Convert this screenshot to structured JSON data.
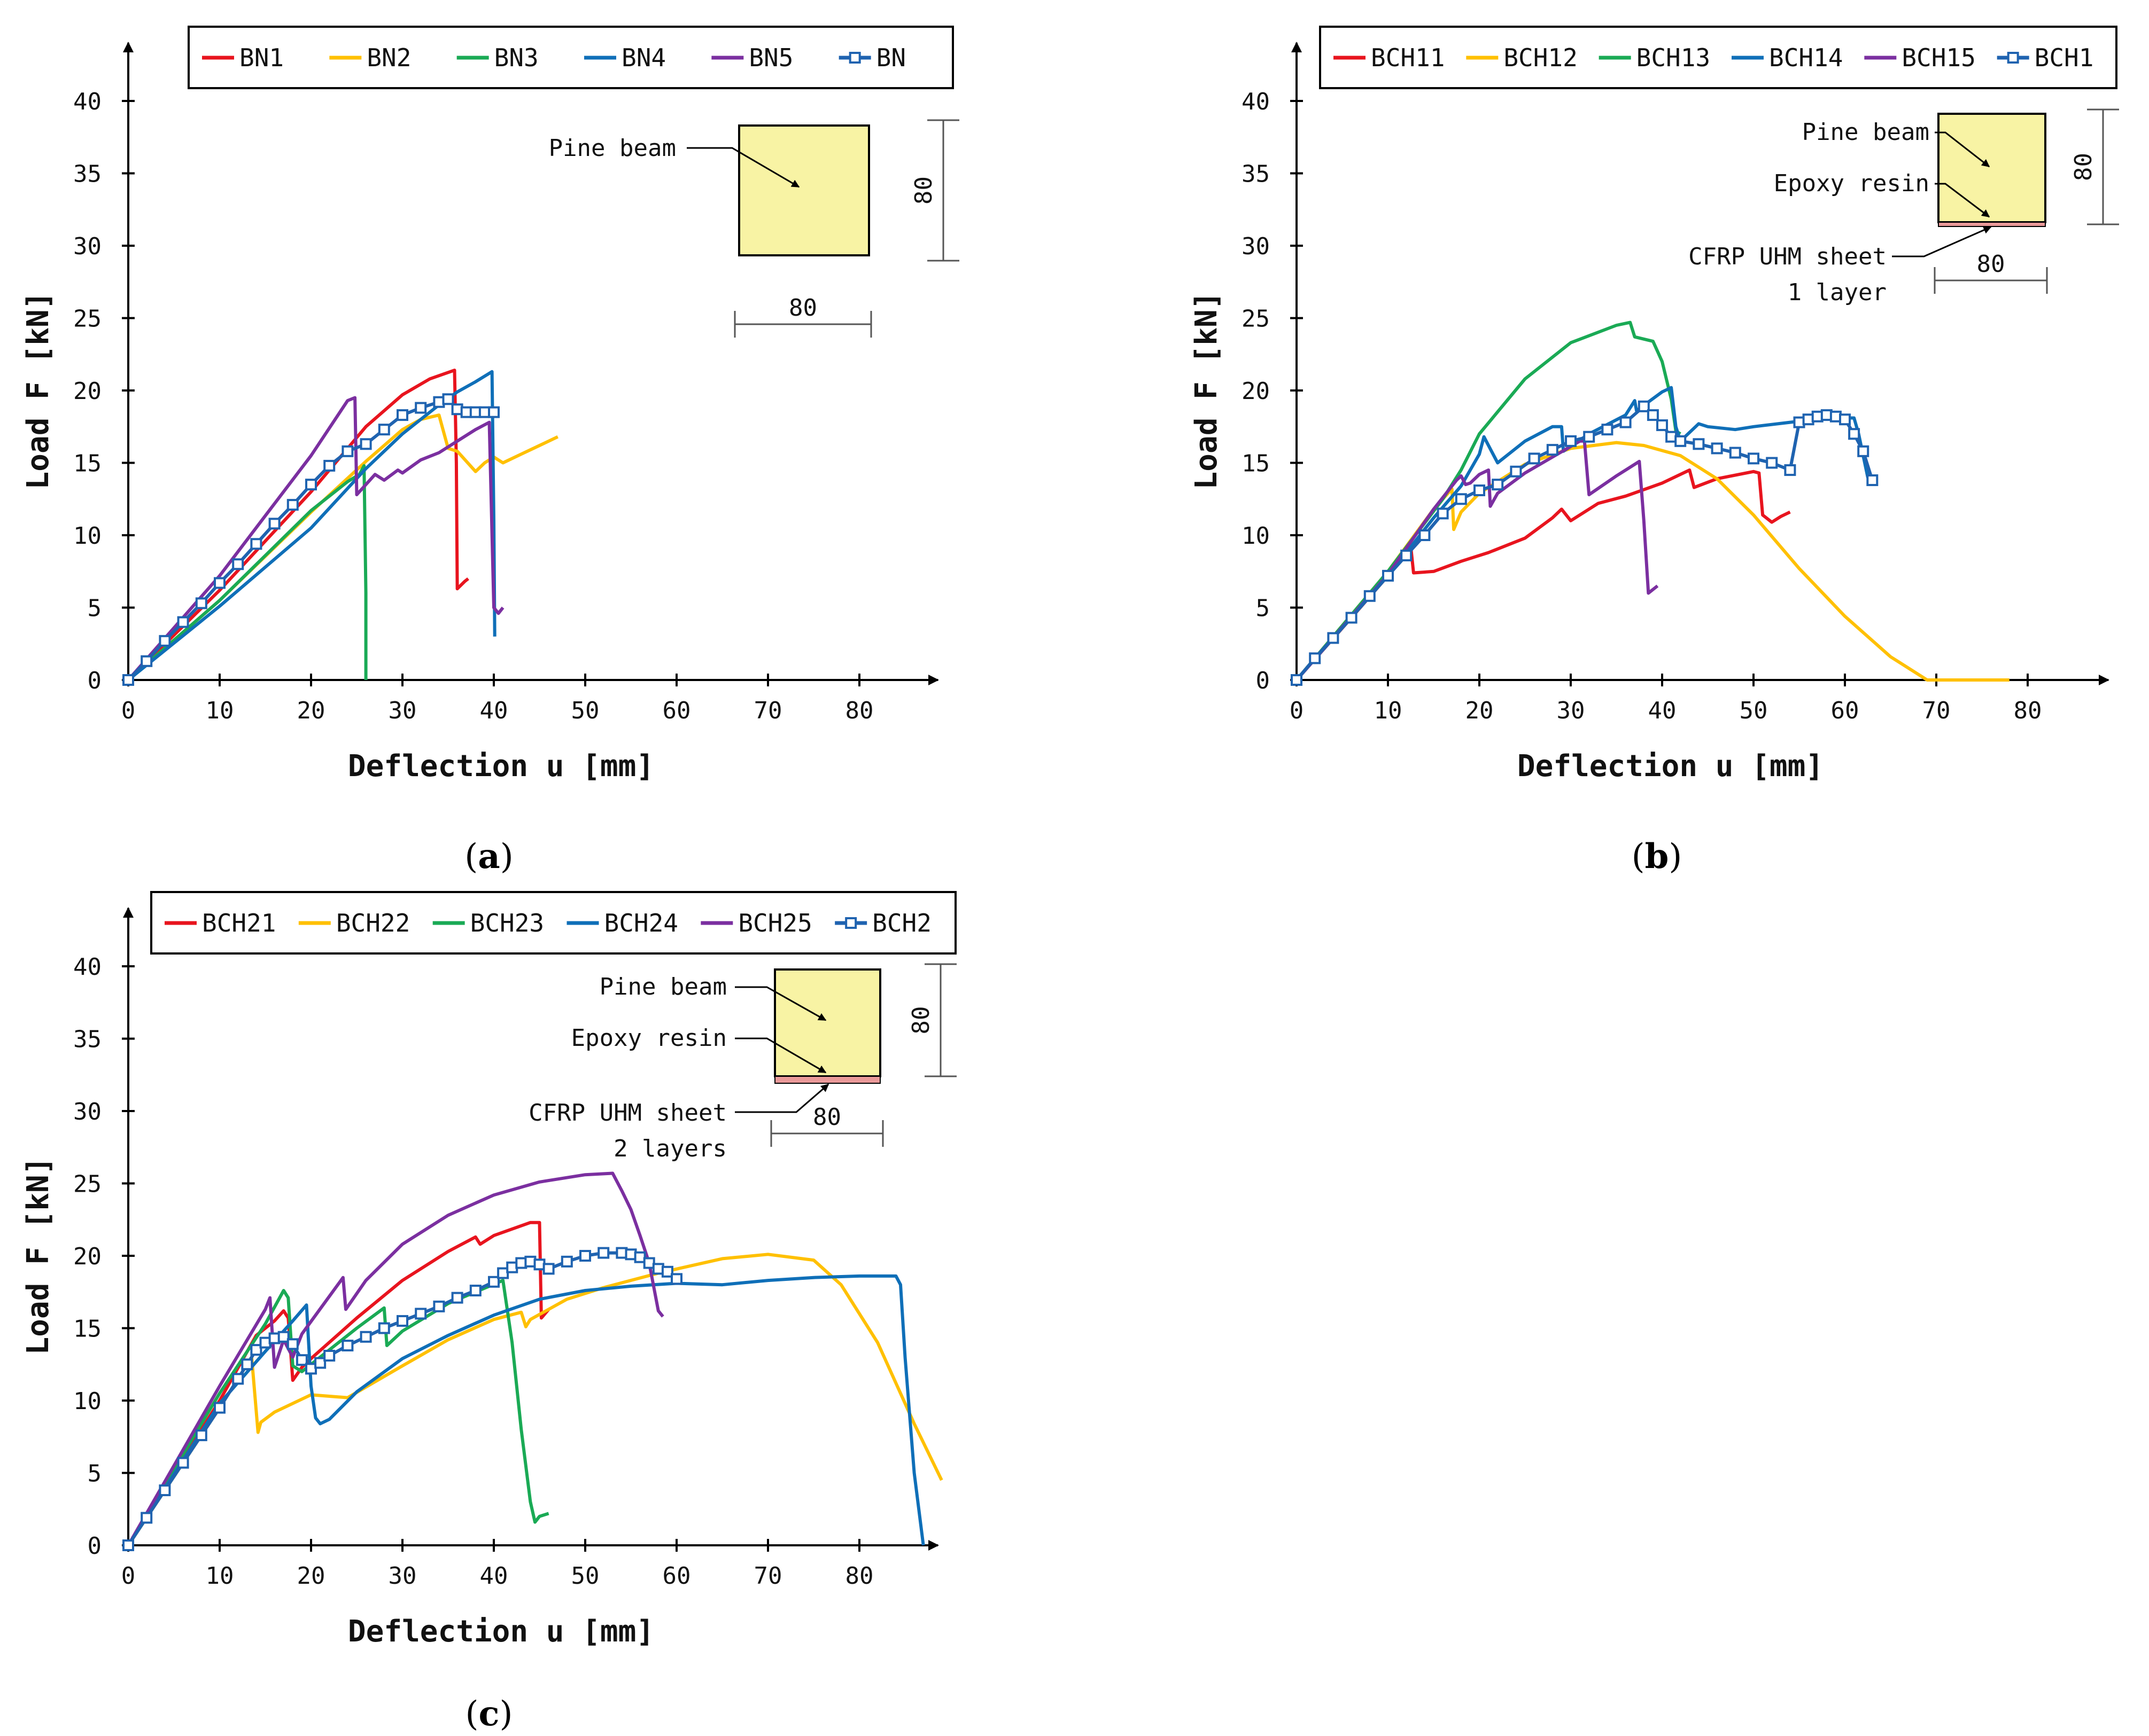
{
  "colors": {
    "red": "#e8141e",
    "yellow": "#ffc000",
    "green": "#1aaa55",
    "blue": "#0f6fb8",
    "purple": "#7b2fa0",
    "mean": "#1f63b0",
    "beam": "#f8f3a4",
    "cfrp": "#ea9999"
  },
  "chart_data": [
    {
      "type": "line",
      "panel": "a",
      "caption": {
        "open": "(",
        "letter": "a",
        "close": ")"
      },
      "xlabel": "Deflection u [mm]",
      "ylabel": "Load F [kN]",
      "xlim": [
        0,
        88
      ],
      "ylim": [
        0,
        43
      ],
      "xticks": [
        "0",
        "10",
        "20",
        "30",
        "40",
        "50",
        "60",
        "70",
        "80"
      ],
      "yticks": [
        "0",
        "5",
        "10",
        "15",
        "20",
        "25",
        "30",
        "35",
        "40"
      ],
      "inset": {
        "labels": [
          "Pine beam"
        ],
        "width": "80",
        "height": "80"
      },
      "series": [
        {
          "name": "BN1",
          "color": "red",
          "x": [
            0,
            10,
            20,
            26,
            30,
            33,
            35.7,
            35.9,
            36,
            36.8,
            37.2
          ],
          "y": [
            0,
            6.2,
            13,
            17.5,
            19.7,
            20.8,
            21.4,
            15,
            6.3,
            6.8,
            7
          ]
        },
        {
          "name": "BN2",
          "color": "yellow",
          "x": [
            0,
            10,
            20,
            26,
            30,
            32,
            34,
            35,
            36,
            37,
            38,
            39,
            40,
            41,
            43,
            45,
            47
          ],
          "y": [
            0,
            5.5,
            11.6,
            15.1,
            17.3,
            18,
            18.3,
            16,
            15.8,
            15.1,
            14.4,
            15,
            15.4,
            15,
            15.6,
            16.2,
            16.8
          ],
          "markers": false
        },
        {
          "name": "BN3",
          "color": "green",
          "x": [
            0,
            10,
            20,
            24,
            25.3,
            25.8,
            26,
            26
          ],
          "y": [
            0,
            5.5,
            11.7,
            13.7,
            14.2,
            14.8,
            6,
            0
          ]
        },
        {
          "name": "BN4",
          "color": "blue",
          "x": [
            0,
            10,
            20,
            26,
            30,
            34,
            36,
            38,
            39.8,
            40,
            40.1
          ],
          "y": [
            0,
            5.1,
            10.5,
            14.6,
            17,
            19,
            19.9,
            20.6,
            21.3,
            11,
            3
          ]
        },
        {
          "name": "BN5",
          "color": "purple",
          "x": [
            0,
            10,
            20,
            24,
            24.8,
            25,
            27,
            28,
            29.5,
            30,
            32,
            34,
            36,
            38,
            39.5,
            40,
            40.5,
            41
          ],
          "y": [
            0,
            7.2,
            15.5,
            19.3,
            19.5,
            12.8,
            14.2,
            13.8,
            14.5,
            14.3,
            15.2,
            15.7,
            16.5,
            17.3,
            17.8,
            5,
            4.6,
            5
          ]
        },
        {
          "name": "BN",
          "color": "mean",
          "markers": true,
          "x": [
            0,
            2,
            4,
            6,
            8,
            10,
            12,
            14,
            16,
            18,
            20,
            22,
            24,
            26,
            28,
            30,
            32,
            34,
            35,
            36,
            37,
            38,
            39,
            40
          ],
          "y": [
            0,
            1.3,
            2.7,
            4,
            5.3,
            6.7,
            8,
            9.4,
            10.8,
            12.1,
            13.5,
            14.8,
            15.8,
            16.3,
            17.3,
            18.3,
            18.8,
            19.2,
            19.4,
            18.7,
            18.5,
            18.5,
            18.5,
            18.5
          ]
        }
      ]
    },
    {
      "type": "line",
      "panel": "b",
      "caption": {
        "open": "(",
        "letter": "b",
        "close": ")"
      },
      "xlabel": "Deflection u [mm]",
      "ylabel": "Load F [kN]",
      "xlim": [
        0,
        88
      ],
      "ylim": [
        0,
        43
      ],
      "xticks": [
        "0",
        "10",
        "20",
        "30",
        "40",
        "50",
        "60",
        "70",
        "80"
      ],
      "yticks": [
        "0",
        "5",
        "10",
        "15",
        "20",
        "25",
        "30",
        "35",
        "40"
      ],
      "inset": {
        "labels": [
          "Pine beam",
          "Epoxy resin",
          "CFRP UHM sheet",
          "1 layer"
        ],
        "width": "80",
        "height": "80"
      },
      "series": [
        {
          "name": "BCH11",
          "color": "red",
          "x": [
            0,
            6,
            10,
            12,
            12.5,
            12.8,
            15,
            18,
            21,
            25,
            28,
            29,
            30,
            33,
            36,
            40,
            43,
            43.5,
            46,
            50,
            50.6,
            51,
            52,
            53,
            54
          ],
          "y": [
            0,
            4.3,
            7.2,
            9,
            9.2,
            7.4,
            7.5,
            8.2,
            8.8,
            9.8,
            11.2,
            11.8,
            11,
            12.2,
            12.7,
            13.6,
            14.5,
            13.3,
            13.9,
            14.4,
            14.3,
            11.4,
            10.9,
            11.3,
            11.6
          ]
        },
        {
          "name": "BCH12",
          "color": "yellow",
          "x": [
            0,
            10,
            15,
            17,
            17.2,
            18,
            20,
            25,
            30,
            35,
            38,
            42,
            46,
            50,
            55,
            60,
            65,
            69,
            70,
            76.5,
            78
          ],
          "y": [
            0,
            7.5,
            11.8,
            13.2,
            10.4,
            11.6,
            12.9,
            14.9,
            16,
            16.4,
            16.2,
            15.5,
            13.9,
            11.4,
            7.7,
            4.4,
            1.6,
            0,
            0,
            0,
            0
          ]
        },
        {
          "name": "BCH13",
          "color": "green",
          "x": [
            0,
            10,
            16,
            18,
            20,
            25,
            30,
            35,
            36.5,
            37,
            39,
            40,
            41,
            41.5,
            42
          ],
          "y": [
            0,
            7.5,
            12.5,
            14.5,
            17,
            20.8,
            23.3,
            24.5,
            24.7,
            23.7,
            23.4,
            22,
            19.4,
            17.2,
            17
          ]
        },
        {
          "name": "BCH14",
          "color": "blue",
          "x": [
            0,
            10,
            15,
            18,
            20,
            20.5,
            22,
            25,
            28,
            29,
            29.2,
            32,
            36,
            37,
            37.2,
            40,
            41,
            41.5,
            42,
            44,
            45,
            48,
            50,
            54,
            58,
            61,
            61.5,
            62,
            62.5,
            63
          ],
          "y": [
            0,
            7.2,
            11.2,
            13.4,
            15.6,
            16.8,
            15,
            16.5,
            17.5,
            17.5,
            15.8,
            17,
            18.3,
            19.3,
            18.6,
            19.9,
            20.2,
            17.5,
            16.5,
            17.7,
            17.5,
            17.3,
            17.5,
            17.8,
            18.1,
            18.1,
            17,
            15.5,
            14,
            13.9
          ]
        },
        {
          "name": "BCH15",
          "color": "purple",
          "x": [
            0,
            10,
            15,
            17.5,
            18,
            18.5,
            19,
            20,
            21,
            21.2,
            22,
            25,
            28,
            31,
            31.5,
            32,
            35,
            37.5,
            38,
            38.5,
            39.5
          ],
          "y": [
            0,
            7.3,
            11.8,
            13.8,
            14.1,
            13.5,
            13.6,
            14.2,
            14.5,
            12,
            12.9,
            14.3,
            15.4,
            16.5,
            16.5,
            12.8,
            14.1,
            15.1,
            11,
            6,
            6.5
          ]
        },
        {
          "name": "BCH1",
          "color": "mean",
          "markers": true,
          "x": [
            0,
            2,
            4,
            6,
            8,
            10,
            12,
            14,
            16,
            18,
            20,
            22,
            24,
            26,
            28,
            30,
            32,
            34,
            36,
            38,
            39,
            40,
            41,
            42,
            44,
            46,
            48,
            50,
            52,
            54,
            55,
            56,
            57,
            58,
            59,
            60,
            61,
            62,
            63
          ],
          "y": [
            0,
            1.5,
            2.9,
            4.3,
            5.8,
            7.2,
            8.6,
            10,
            11.5,
            12.5,
            13.1,
            13.5,
            14.4,
            15.3,
            15.9,
            16.5,
            16.8,
            17.3,
            17.8,
            18.9,
            18.3,
            17.6,
            16.8,
            16.5,
            16.3,
            16,
            15.7,
            15.3,
            15,
            14.5,
            17.8,
            18,
            18.2,
            18.3,
            18.2,
            18,
            17,
            15.8,
            13.8
          ]
        }
      ]
    },
    {
      "type": "line",
      "panel": "c",
      "caption": {
        "open": "(",
        "letter": "c",
        "close": ")"
      },
      "xlabel": "Deflection u [mm]",
      "ylabel": "Load F [kN]",
      "xlim": [
        0,
        88
      ],
      "ylim": [
        0,
        43
      ],
      "xticks": [
        "0",
        "10",
        "20",
        "30",
        "40",
        "50",
        "60",
        "70",
        "80"
      ],
      "yticks": [
        "0",
        "5",
        "10",
        "15",
        "20",
        "25",
        "30",
        "35",
        "40"
      ],
      "inset": {
        "labels": [
          "Pine beam",
          "Epoxy resin",
          "CFRP UHM sheet",
          "2 layers"
        ],
        "width": "80",
        "height": "80"
      },
      "series": [
        {
          "name": "BCH21",
          "color": "red",
          "x": [
            0,
            10,
            14,
            16,
            17,
            17.5,
            18,
            19,
            20,
            25,
            30,
            35,
            38,
            38.5,
            40,
            44,
            45,
            45.2,
            46
          ],
          "y": [
            0,
            10,
            14.5,
            15.5,
            16.2,
            15.7,
            11.4,
            12.3,
            12.9,
            15.7,
            18.3,
            20.3,
            21.3,
            20.8,
            21.4,
            22.3,
            22.3,
            15.7,
            16.3
          ]
        },
        {
          "name": "BCH22",
          "color": "yellow",
          "x": [
            0,
            10,
            13.5,
            14.2,
            14.5,
            16,
            20,
            24,
            30,
            35,
            40,
            43,
            43.5,
            44,
            48,
            52,
            58,
            65,
            70,
            75,
            78,
            82,
            86,
            89
          ],
          "y": [
            0,
            9.5,
            13,
            7.8,
            8.5,
            9.2,
            10.4,
            10.2,
            12.4,
            14.2,
            15.6,
            16.1,
            15.1,
            15.6,
            17,
            17.8,
            18.8,
            19.8,
            20.1,
            19.7,
            18,
            14,
            8.4,
            4.5
          ]
        },
        {
          "name": "BCH23",
          "color": "green",
          "x": [
            0,
            10,
            15,
            17,
            17.5,
            18,
            19,
            20,
            25,
            28,
            28.3,
            30,
            35,
            41,
            42,
            43,
            44,
            44.5,
            45,
            46
          ],
          "y": [
            0,
            10.5,
            15.3,
            17.6,
            17.1,
            12.4,
            12,
            12.5,
            15,
            16.4,
            13.8,
            14.8,
            16.7,
            18.3,
            14,
            8,
            3,
            1.6,
            2,
            2.2
          ]
        },
        {
          "name": "BCH24",
          "color": "blue",
          "x": [
            0,
            10,
            15,
            18,
            19.5,
            20,
            20.5,
            21,
            22,
            25,
            30,
            35,
            40,
            45,
            50,
            55,
            60,
            65,
            70,
            75,
            80,
            84,
            84.5,
            85,
            86,
            87
          ],
          "y": [
            0,
            9.8,
            13.4,
            15.5,
            16.6,
            11,
            8.8,
            8.4,
            8.7,
            10.6,
            12.9,
            14.5,
            15.9,
            17,
            17.6,
            17.9,
            18.1,
            18,
            18.3,
            18.5,
            18.6,
            18.6,
            18,
            13,
            5,
            0
          ]
        },
        {
          "name": "BCH25",
          "color": "purple",
          "x": [
            0,
            10,
            15,
            15.5,
            16,
            17,
            18,
            19,
            23.5,
            23.8,
            26,
            30,
            35,
            40,
            45,
            50,
            53,
            54,
            55,
            56,
            57,
            58,
            58.5
          ],
          "y": [
            0,
            11,
            16.3,
            17.1,
            12.3,
            14.2,
            13,
            14.6,
            18.5,
            16.3,
            18.3,
            20.8,
            22.8,
            24.2,
            25.1,
            25.6,
            25.7,
            24.5,
            23.2,
            21.4,
            19.5,
            16.2,
            15.8
          ]
        },
        {
          "name": "BCH2",
          "color": "mean",
          "markers": true,
          "x": [
            0,
            2,
            4,
            6,
            8,
            10,
            12,
            13,
            14,
            15,
            16,
            17,
            18,
            19,
            20,
            21,
            22,
            24,
            26,
            28,
            30,
            32,
            34,
            36,
            38,
            40,
            41,
            42,
            43,
            44,
            45,
            46,
            48,
            50,
            52,
            54,
            55,
            56,
            57,
            58,
            59,
            60
          ],
          "y": [
            0,
            1.9,
            3.8,
            5.7,
            7.6,
            9.5,
            11.5,
            12.5,
            13.5,
            14,
            14.3,
            14.4,
            13.9,
            12.8,
            12.2,
            12.6,
            13.1,
            13.8,
            14.4,
            15,
            15.5,
            16,
            16.5,
            17.1,
            17.6,
            18.2,
            18.8,
            19.2,
            19.5,
            19.6,
            19.4,
            19.1,
            19.6,
            20,
            20.2,
            20.2,
            20.1,
            19.9,
            19.5,
            19.1,
            18.9,
            18.4
          ]
        }
      ]
    }
  ]
}
